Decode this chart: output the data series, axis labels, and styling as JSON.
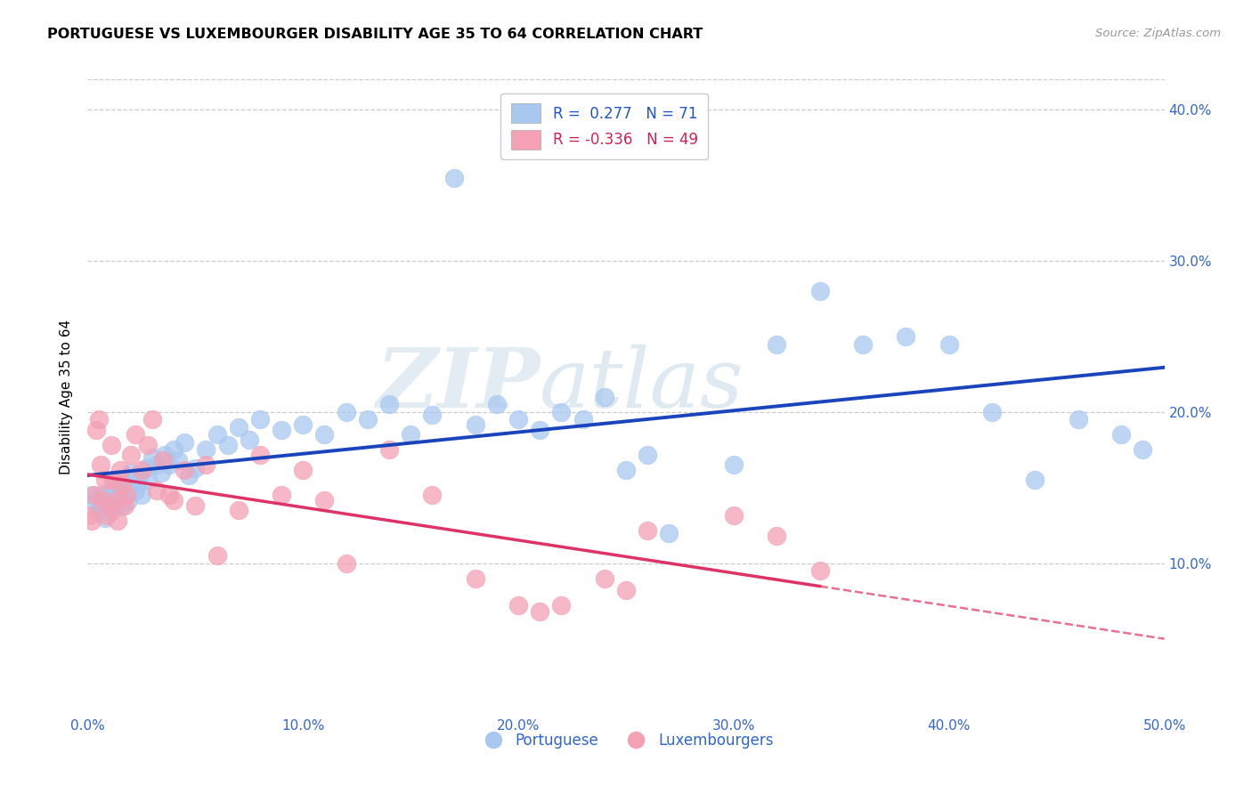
{
  "title": "PORTUGUESE VS LUXEMBOURGER DISABILITY AGE 35 TO 64 CORRELATION CHART",
  "source": "Source: ZipAtlas.com",
  "ylabel": "Disability Age 35 to 64",
  "xlim": [
    0.0,
    0.5
  ],
  "ylim": [
    0.0,
    0.42
  ],
  "xtick_labels": [
    "0.0%",
    "10.0%",
    "20.0%",
    "30.0%",
    "40.0%",
    "50.0%"
  ],
  "xtick_vals": [
    0.0,
    0.1,
    0.2,
    0.3,
    0.4,
    0.5
  ],
  "ytick_labels": [
    "10.0%",
    "20.0%",
    "30.0%",
    "40.0%"
  ],
  "ytick_vals": [
    0.1,
    0.2,
    0.3,
    0.4
  ],
  "blue_color": "#a8c8f0",
  "pink_color": "#f4a0b5",
  "blue_line_color": "#1a44bb",
  "pink_line_color": "#dd3366",
  "blue_r": 0.277,
  "blue_n": 71,
  "pink_r": -0.336,
  "pink_n": 49,
  "legend_labels": [
    "Portuguese",
    "Luxembourgers"
  ],
  "watermark_zip": "ZIP",
  "watermark_atlas": "atlas",
  "blue_scatter_x": [
    0.002,
    0.003,
    0.005,
    0.006,
    0.007,
    0.008,
    0.009,
    0.01,
    0.011,
    0.012,
    0.013,
    0.014,
    0.015,
    0.016,
    0.017,
    0.018,
    0.019,
    0.02,
    0.021,
    0.022,
    0.023,
    0.024,
    0.025,
    0.027,
    0.028,
    0.03,
    0.032,
    0.034,
    0.036,
    0.038,
    0.04,
    0.042,
    0.045,
    0.047,
    0.05,
    0.055,
    0.06,
    0.065,
    0.07,
    0.075,
    0.08,
    0.09,
    0.1,
    0.11,
    0.12,
    0.13,
    0.14,
    0.15,
    0.16,
    0.17,
    0.18,
    0.19,
    0.2,
    0.21,
    0.22,
    0.23,
    0.24,
    0.25,
    0.26,
    0.27,
    0.3,
    0.32,
    0.34,
    0.36,
    0.38,
    0.4,
    0.42,
    0.44,
    0.46,
    0.48,
    0.49
  ],
  "blue_scatter_y": [
    0.145,
    0.14,
    0.135,
    0.14,
    0.145,
    0.13,
    0.138,
    0.142,
    0.148,
    0.135,
    0.14,
    0.15,
    0.145,
    0.138,
    0.155,
    0.148,
    0.142,
    0.16,
    0.155,
    0.148,
    0.152,
    0.158,
    0.145,
    0.163,
    0.155,
    0.17,
    0.165,
    0.16,
    0.172,
    0.165,
    0.175,
    0.168,
    0.18,
    0.158,
    0.163,
    0.175,
    0.185,
    0.178,
    0.19,
    0.182,
    0.195,
    0.188,
    0.192,
    0.185,
    0.2,
    0.195,
    0.205,
    0.185,
    0.198,
    0.355,
    0.192,
    0.205,
    0.195,
    0.188,
    0.2,
    0.195,
    0.21,
    0.162,
    0.172,
    0.12,
    0.165,
    0.245,
    0.28,
    0.245,
    0.25,
    0.245,
    0.2,
    0.155,
    0.195,
    0.185,
    0.175
  ],
  "pink_scatter_x": [
    0.001,
    0.002,
    0.003,
    0.004,
    0.005,
    0.006,
    0.007,
    0.008,
    0.009,
    0.01,
    0.011,
    0.012,
    0.013,
    0.014,
    0.015,
    0.016,
    0.017,
    0.018,
    0.02,
    0.022,
    0.025,
    0.028,
    0.03,
    0.032,
    0.035,
    0.038,
    0.04,
    0.045,
    0.05,
    0.055,
    0.06,
    0.07,
    0.08,
    0.09,
    0.1,
    0.11,
    0.12,
    0.14,
    0.16,
    0.18,
    0.2,
    0.21,
    0.22,
    0.24,
    0.25,
    0.26,
    0.3,
    0.32,
    0.34
  ],
  "pink_scatter_y": [
    0.132,
    0.128,
    0.145,
    0.188,
    0.195,
    0.165,
    0.142,
    0.155,
    0.132,
    0.138,
    0.178,
    0.155,
    0.142,
    0.128,
    0.162,
    0.152,
    0.138,
    0.145,
    0.172,
    0.185,
    0.162,
    0.178,
    0.195,
    0.148,
    0.168,
    0.145,
    0.142,
    0.162,
    0.138,
    0.165,
    0.105,
    0.135,
    0.172,
    0.145,
    0.162,
    0.142,
    0.1,
    0.175,
    0.145,
    0.09,
    0.072,
    0.068,
    0.072,
    0.09,
    0.082,
    0.122,
    0.132,
    0.118,
    0.095
  ]
}
